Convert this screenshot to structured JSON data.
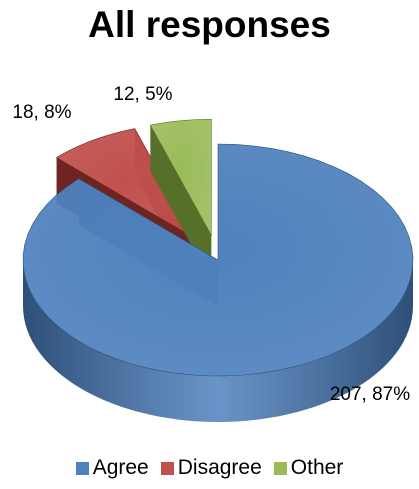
{
  "chart_data": {
    "type": "pie",
    "title": "All responses",
    "slices": [
      {
        "name": "Agree",
        "value": 207,
        "percent": "87%",
        "label": "207, 87%",
        "color": "#4F81BD",
        "side_color": "#2E4F78"
      },
      {
        "name": "Disagree",
        "value": 18,
        "percent": "8%",
        "label": "18, 8%",
        "color": "#C0504D",
        "side_color": "#6E2423"
      },
      {
        "name": "Other",
        "value": 12,
        "percent": "5%",
        "label": "12, 5%",
        "color": "#9BBB59",
        "side_color": "#56702A"
      }
    ],
    "legend_position": "bottom",
    "style": "3d exploded"
  }
}
